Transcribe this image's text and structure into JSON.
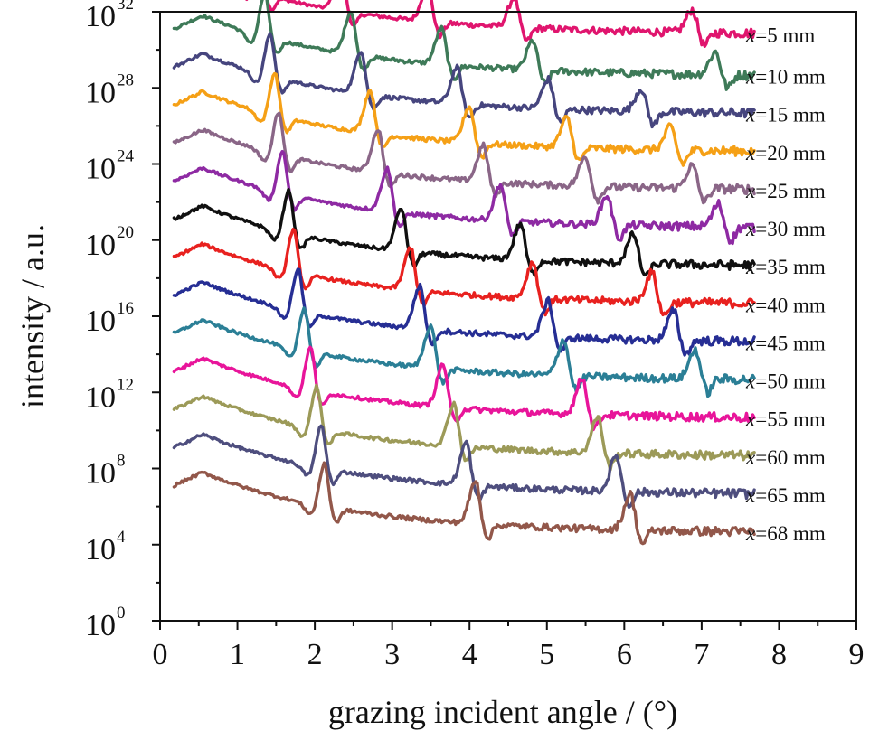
{
  "chart_data": {
    "type": "line",
    "xlabel": "grazing incident angle / (°)",
    "ylabel": "intensity / a.u.",
    "xlim": [
      0,
      9
    ],
    "ylim_log10": [
      0,
      32
    ],
    "y_scale": "log",
    "grid": false,
    "legend": "inline labels at right end of each curve",
    "x_ticks": [
      "0",
      "1",
      "2",
      "3",
      "4",
      "5",
      "6",
      "7",
      "8",
      "9"
    ],
    "y_ticks": [
      {
        "base": "10",
        "exp": "0"
      },
      {
        "base": "10",
        "exp": "4"
      },
      {
        "base": "10",
        "exp": "8"
      },
      {
        "base": "10",
        "exp": "12"
      },
      {
        "base": "10",
        "exp": "16"
      },
      {
        "base": "10",
        "exp": "20"
      },
      {
        "base": "10",
        "exp": "24"
      },
      {
        "base": "10",
        "exp": "28"
      },
      {
        "base": "10",
        "exp": "32"
      }
    ],
    "series": [
      {
        "name": "x=5 mm",
        "label_var": "x",
        "label_rest": "=5 mm",
        "color": "#e0156e",
        "baseline_log10": 30.8,
        "peaks": [
          1.28,
          2.34,
          3.46,
          4.58,
          6.88
        ]
      },
      {
        "name": "x=10 mm",
        "label_var": "x",
        "label_rest": "=10 mm",
        "color": "#3e7a58",
        "baseline_log10": 28.6,
        "peaks": [
          1.35,
          2.47,
          3.64,
          4.82,
          7.18
        ]
      },
      {
        "name": "x=15 mm",
        "label_var": "x",
        "label_rest": "=15 mm",
        "color": "#46457e",
        "baseline_log10": 26.6,
        "peaks": [
          1.42,
          2.6,
          3.84,
          5.02,
          6.22
        ]
      },
      {
        "name": "x=20 mm",
        "label_var": "x",
        "label_rest": "=20 mm",
        "color": "#f5a016",
        "baseline_log10": 24.6,
        "peaks": [
          1.48,
          2.72,
          4.0,
          5.26,
          6.6
        ]
      },
      {
        "name": "x=25 mm",
        "label_var": "x",
        "label_rest": "=25 mm",
        "color": "#8a6687",
        "baseline_log10": 22.6,
        "peaks": [
          1.53,
          2.82,
          4.18,
          5.5,
          6.88
        ]
      },
      {
        "name": "x=30 mm",
        "label_var": "x",
        "label_rest": "=30 mm",
        "color": "#8e2aa3",
        "baseline_log10": 20.6,
        "peaks": [
          1.58,
          2.94,
          4.4,
          5.78,
          7.22
        ]
      },
      {
        "name": "x=35 mm",
        "label_var": "x",
        "label_rest": "=35 mm",
        "color": "#101010",
        "baseline_log10": 18.6,
        "peaks": [
          1.66,
          3.12,
          4.66,
          6.12
        ]
      },
      {
        "name": "x=40 mm",
        "label_var": "x",
        "label_rest": "=40 mm",
        "color": "#e8211f",
        "baseline_log10": 16.6,
        "peaks": [
          1.72,
          3.24,
          4.82,
          6.36
        ]
      },
      {
        "name": "x=45 mm",
        "label_var": "x",
        "label_rest": "=45 mm",
        "color": "#262e94",
        "baseline_log10": 14.6,
        "peaks": [
          1.78,
          3.36,
          5.02,
          6.64
        ]
      },
      {
        "name": "x=50 mm",
        "label_var": "x",
        "label_rest": "=50 mm",
        "color": "#2b7f96",
        "baseline_log10": 12.6,
        "peaks": [
          1.86,
          3.5,
          5.22,
          6.92
        ]
      },
      {
        "name": "x=55 mm",
        "label_var": "x",
        "label_rest": "=55 mm",
        "color": "#e8159a",
        "baseline_log10": 10.6,
        "peaks": [
          1.94,
          3.66,
          5.46
        ]
      },
      {
        "name": "x=60 mm",
        "label_var": "x",
        "label_rest": "=60 mm",
        "color": "#9c9a58",
        "baseline_log10": 8.6,
        "peaks": [
          2.02,
          3.8,
          5.66
        ]
      },
      {
        "name": "x=65 mm",
        "label_var": "x",
        "label_rest": "=65 mm",
        "color": "#4e4e7e",
        "baseline_log10": 6.6,
        "peaks": [
          2.08,
          3.96,
          5.9
        ]
      },
      {
        "name": "x=68 mm",
        "label_var": "x",
        "label_rest": "=68 mm",
        "color": "#92574a",
        "baseline_log10": 4.6,
        "peaks": [
          2.12,
          4.08,
          6.08
        ]
      }
    ]
  }
}
